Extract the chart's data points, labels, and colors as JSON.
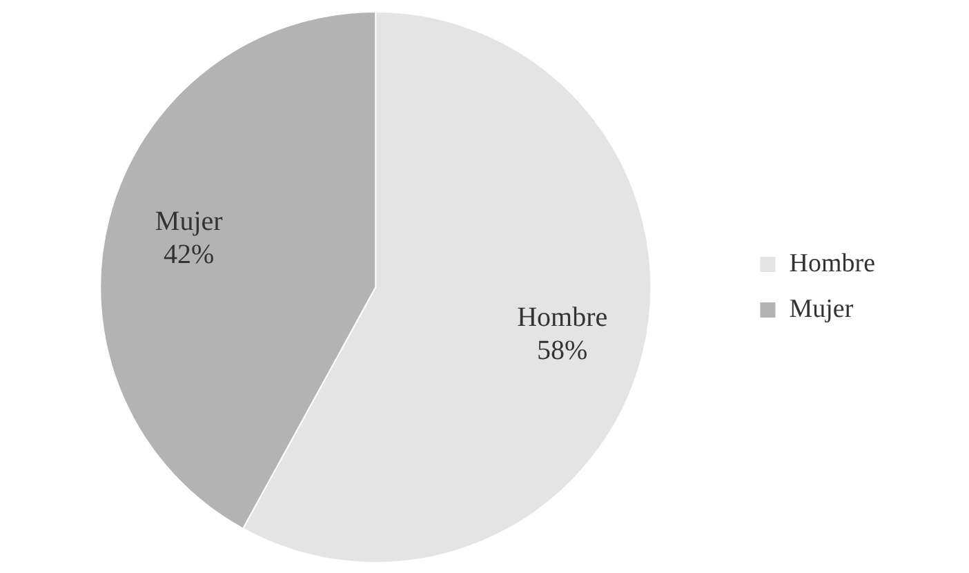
{
  "chart_data": {
    "type": "pie",
    "categories": [
      "Hombre",
      "Mujer"
    ],
    "values": [
      58,
      42
    ],
    "colors": [
      "#e4e4e4",
      "#b3b3b3"
    ],
    "value_labels": [
      "58%",
      "42%"
    ],
    "legend": "right"
  }
}
